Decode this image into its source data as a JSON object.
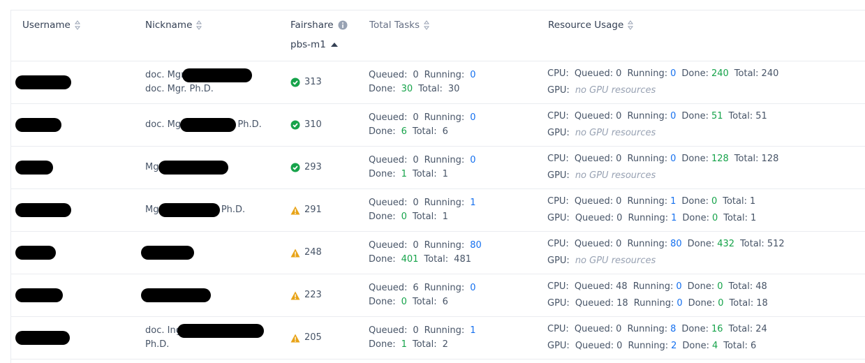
{
  "header": {
    "columns": [
      "Username",
      "Nickname",
      "Fairshare",
      "Total Tasks",
      "Resource Usage"
    ],
    "fairshare_sub": "pbs-m1"
  },
  "labels": {
    "queued": "Queued:",
    "running": "Running:",
    "done": "Done:",
    "total": "Total:",
    "cpu": "CPU:",
    "gpu": "GPU:"
  },
  "table": {
    "rows": [
      {
        "nickname": [
          [
            "doc. Mgr.",
            null
          ],
          [
            "doc. Mgr. Ph.D."
          ]
        ],
        "fairshare": 313,
        "status": "ok",
        "tasks": {
          "queued": 0,
          "running": 0,
          "done": 30,
          "total": 30
        },
        "cpu": {
          "queued": 0,
          "running": 0,
          "done": 240,
          "total": 240
        },
        "gpu": "no GPU resources"
      },
      {
        "nickname": [
          [
            "doc. Mgr",
            null,
            "Ph.D."
          ]
        ],
        "fairshare": 310,
        "status": "ok",
        "tasks": {
          "queued": 0,
          "running": 0,
          "done": 6,
          "total": 6
        },
        "cpu": {
          "queued": 0,
          "running": 0,
          "done": 51,
          "total": 51
        },
        "gpu": "no GPU resources"
      },
      {
        "nickname": [
          [
            "Mgr",
            null
          ]
        ],
        "fairshare": 293,
        "status": "ok",
        "tasks": {
          "queued": 0,
          "running": 0,
          "done": 1,
          "total": 1
        },
        "cpu": {
          "queued": 0,
          "running": 0,
          "done": 128,
          "total": 128
        },
        "gpu": "no GPU resources"
      },
      {
        "nickname": [
          [
            "Mgr",
            null,
            "Ph.D."
          ]
        ],
        "fairshare": 291,
        "status": "warn",
        "tasks": {
          "queued": 0,
          "running": 1,
          "done": 0,
          "total": 1
        },
        "cpu": {
          "queued": 0,
          "running": 1,
          "done": 0,
          "total": 1
        },
        "gpu": {
          "queued": 0,
          "running": 1,
          "done": 0,
          "total": 1
        }
      },
      {
        "nickname": [
          [
            null
          ]
        ],
        "fairshare": 248,
        "status": "warn",
        "tasks": {
          "queued": 0,
          "running": 80,
          "done": 401,
          "total": 481
        },
        "cpu": {
          "queued": 0,
          "running": 80,
          "done": 432,
          "total": 512
        },
        "gpu": "no GPU resources"
      },
      {
        "nickname": [
          [
            null
          ]
        ],
        "fairshare": 223,
        "status": "warn",
        "tasks": {
          "queued": 6,
          "running": 0,
          "done": 0,
          "total": 6
        },
        "cpu": {
          "queued": 48,
          "running": 0,
          "done": 0,
          "total": 48
        },
        "gpu": {
          "queued": 18,
          "running": 0,
          "done": 0,
          "total": 18
        }
      },
      {
        "nickname": [
          [
            "doc. Ing",
            null
          ],
          [
            "Ph.D."
          ]
        ],
        "fairshare": 205,
        "status": "warn",
        "tasks": {
          "queued": 0,
          "running": 1,
          "done": 1,
          "total": 2
        },
        "cpu": {
          "queued": 0,
          "running": 8,
          "done": 16,
          "total": 24
        },
        "gpu": {
          "queued": 0,
          "running": 2,
          "done": 4,
          "total": 6
        }
      }
    ]
  }
}
